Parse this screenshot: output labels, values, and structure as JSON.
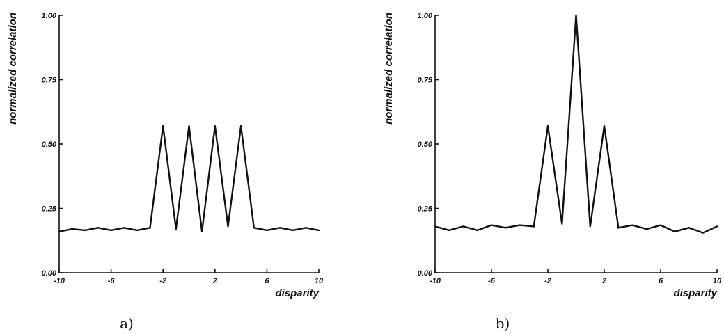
{
  "chart_data": [
    {
      "type": "line",
      "caption": "a)",
      "xlabel": "disparity",
      "ylabel": "normalized correlation",
      "xlim": [
        -10,
        10
      ],
      "ylim": [
        0,
        1
      ],
      "x_ticks": [
        "-10",
        "-6",
        "-2",
        "2",
        "6",
        "10"
      ],
      "y_ticks": [
        "0.00",
        "0.25",
        "0.50",
        "0.75",
        "1.00"
      ],
      "grid": false,
      "x": [
        -10,
        -9,
        -8,
        -7,
        -6,
        -5,
        -4,
        -3,
        -2,
        -1,
        0,
        1,
        2,
        3,
        4,
        5,
        6,
        7,
        8,
        9,
        10
      ],
      "series": [
        {
          "values": [
            0.16,
            0.17,
            0.165,
            0.175,
            0.165,
            0.175,
            0.165,
            0.175,
            0.57,
            0.17,
            0.57,
            0.16,
            0.57,
            0.18,
            0.57,
            0.175,
            0.165,
            0.175,
            0.165,
            0.175,
            0.165
          ]
        }
      ]
    },
    {
      "type": "line",
      "caption": "b)",
      "xlabel": "disparity",
      "ylabel": "normalized correlation",
      "xlim": [
        -10,
        10
      ],
      "ylim": [
        0,
        1
      ],
      "x_ticks": [
        "-10",
        "-6",
        "-2",
        "2",
        "6",
        "10"
      ],
      "y_ticks": [
        "0.00",
        "0.25",
        "0.50",
        "0.75",
        "1.00"
      ],
      "grid": false,
      "x": [
        -10,
        -9,
        -8,
        -7,
        -6,
        -5,
        -4,
        -3,
        -2,
        -1,
        0,
        1,
        2,
        3,
        4,
        5,
        6,
        7,
        8,
        9,
        10
      ],
      "series": [
        {
          "values": [
            0.18,
            0.165,
            0.18,
            0.165,
            0.185,
            0.175,
            0.185,
            0.18,
            0.57,
            0.19,
            1.0,
            0.18,
            0.57,
            0.175,
            0.185,
            0.17,
            0.185,
            0.16,
            0.175,
            0.155,
            0.18
          ]
        }
      ]
    }
  ]
}
